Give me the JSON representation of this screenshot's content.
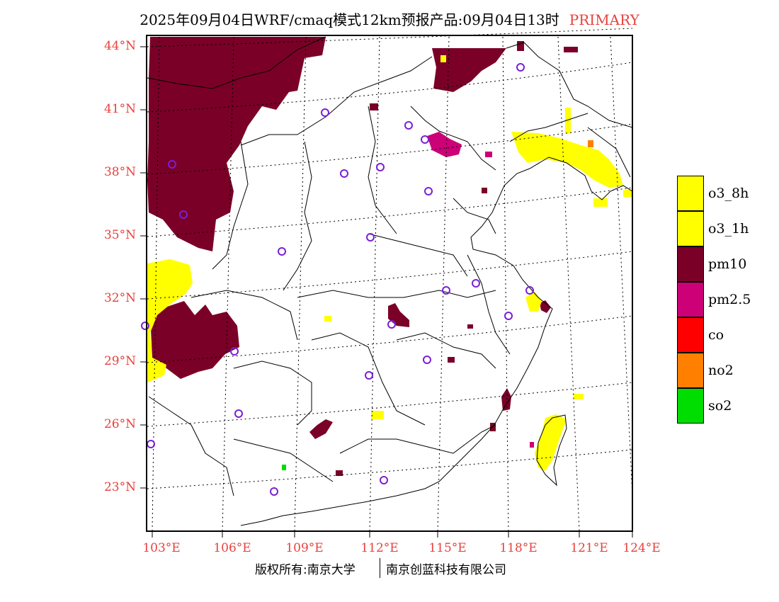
{
  "header": {
    "title": "2025年09月04日WRF/cmaq模式12km预报产品:09月04日13时",
    "tag": "PRIMARY"
  },
  "axes": {
    "lat_labels": [
      "44°N",
      "41°N",
      "38°N",
      "35°N",
      "32°N",
      "29°N",
      "26°N",
      "23°N"
    ],
    "lon_labels": [
      "103°E",
      "106°E",
      "109°E",
      "112°E",
      "115°E",
      "118°E",
      "121°E",
      "124°E"
    ]
  },
  "legend": {
    "items": [
      {
        "label": "o3_8h",
        "color": "#ffff00"
      },
      {
        "label": "o3_1h",
        "color": "#ffff00"
      },
      {
        "label": "pm10",
        "color": "#7a0028"
      },
      {
        "label": "pm2.5",
        "color": "#cc0077"
      },
      {
        "label": "co",
        "color": "#ff0000"
      },
      {
        "label": "no2",
        "color": "#ff8000"
      },
      {
        "label": "so2",
        "color": "#00dd00"
      }
    ]
  },
  "footer": {
    "left": "版权所有:南京大学",
    "right": "南京创蓝科技有限公司"
  },
  "colors": {
    "axis_label": "#e8413c",
    "station_marker": "#7a1fd6"
  }
}
